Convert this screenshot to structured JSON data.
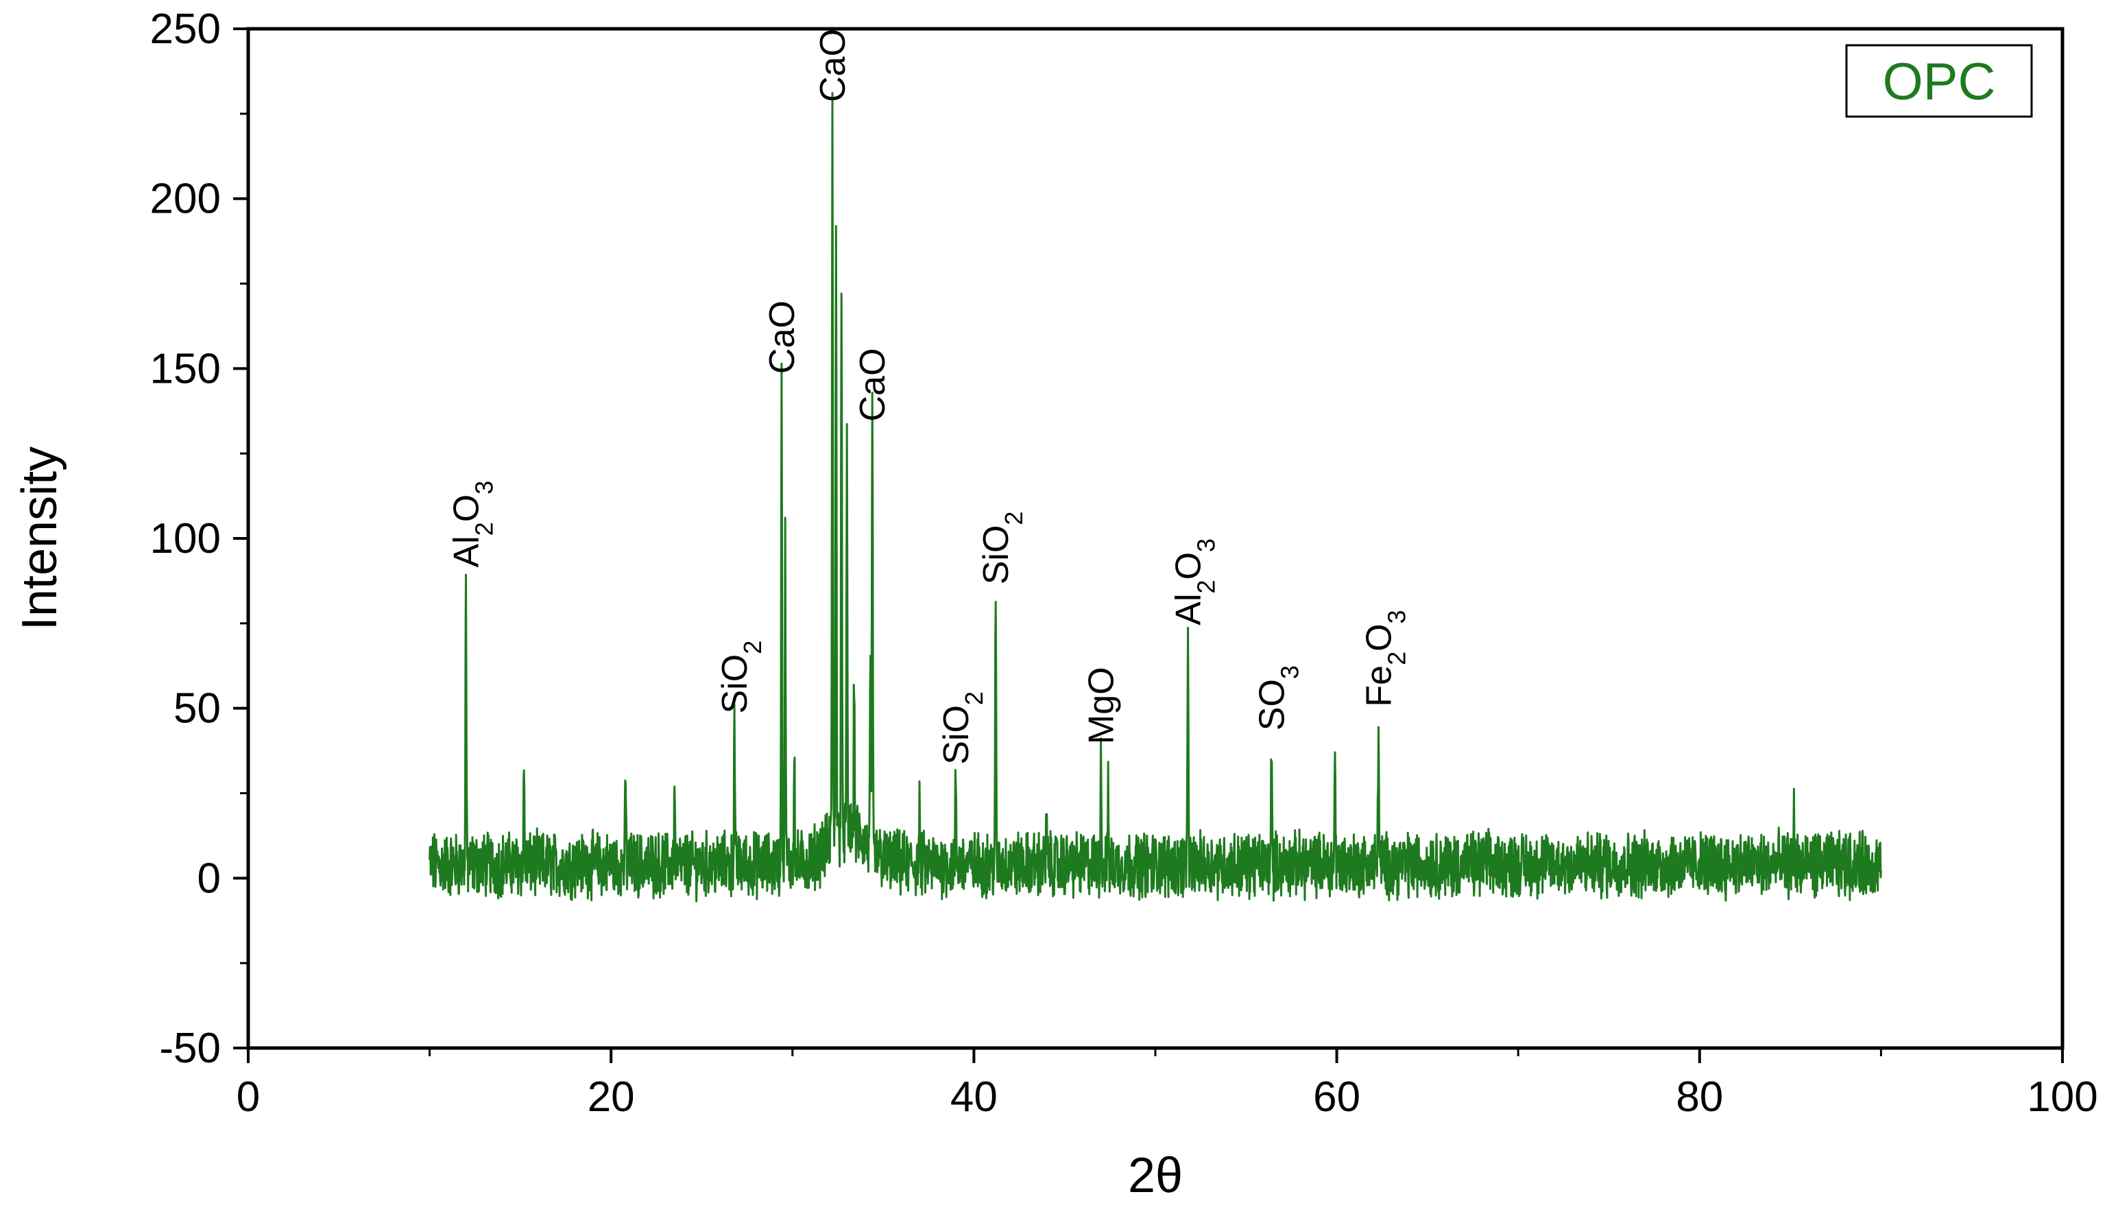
{
  "chart_data": {
    "type": "line",
    "title": "",
    "xlabel": "2θ",
    "ylabel": "Intensity",
    "xlim": [
      0,
      100
    ],
    "ylim": [
      -50,
      250
    ],
    "xticks": [
      0,
      20,
      40,
      60,
      80,
      100
    ],
    "yticks": [
      -50,
      0,
      50,
      100,
      150,
      200,
      250
    ],
    "x_tick_labels": [
      "0",
      "20",
      "40",
      "60",
      "80",
      "100"
    ],
    "y_tick_labels": [
      "-50",
      "0",
      "50",
      "100",
      "150",
      "200",
      "250"
    ],
    "grid": false,
    "legend_position": "top-right",
    "legend": [
      "OPC"
    ],
    "series": [
      {
        "name": "OPC",
        "color": "#1e7a1e",
        "x_range": [
          10,
          90
        ],
        "baseline": 4,
        "peaks": [
          {
            "x": 12.0,
            "y": 89
          },
          {
            "x": 15.2,
            "y": 32
          },
          {
            "x": 20.8,
            "y": 30
          },
          {
            "x": 23.5,
            "y": 26
          },
          {
            "x": 26.8,
            "y": 46
          },
          {
            "x": 29.4,
            "y": 146
          },
          {
            "x": 29.6,
            "y": 98
          },
          {
            "x": 30.1,
            "y": 40
          },
          {
            "x": 32.2,
            "y": 226
          },
          {
            "x": 32.4,
            "y": 188
          },
          {
            "x": 32.7,
            "y": 163
          },
          {
            "x": 33.0,
            "y": 115
          },
          {
            "x": 33.4,
            "y": 50
          },
          {
            "x": 34.3,
            "y": 62
          },
          {
            "x": 34.4,
            "y": 132
          },
          {
            "x": 37.0,
            "y": 20
          },
          {
            "x": 39.0,
            "y": 31
          },
          {
            "x": 41.2,
            "y": 84
          },
          {
            "x": 44.0,
            "y": 18
          },
          {
            "x": 47.0,
            "y": 37
          },
          {
            "x": 47.4,
            "y": 24
          },
          {
            "x": 51.8,
            "y": 72
          },
          {
            "x": 56.4,
            "y": 41
          },
          {
            "x": 59.9,
            "y": 38
          },
          {
            "x": 62.3,
            "y": 48
          },
          {
            "x": 85.2,
            "y": 21
          }
        ]
      }
    ],
    "peak_labels": [
      {
        "x": 12.0,
        "y": 89,
        "base": "Al",
        "sub1": "2",
        "mid": "O",
        "sub2": "3"
      },
      {
        "x": 26.8,
        "y": 46,
        "base": "Si",
        "sub1": "",
        "mid": "O",
        "sub2": "2"
      },
      {
        "x": 29.4,
        "y": 146,
        "base": "CaO",
        "sub1": "",
        "mid": "",
        "sub2": ""
      },
      {
        "x": 32.2,
        "y": 226,
        "base": "CaO",
        "sub1": "",
        "mid": "",
        "sub2": ""
      },
      {
        "x": 34.4,
        "y": 132,
        "base": "CaO",
        "sub1": "",
        "mid": "",
        "sub2": ""
      },
      {
        "x": 39.0,
        "y": 31,
        "base": "Si",
        "sub1": "",
        "mid": "O",
        "sub2": "2"
      },
      {
        "x": 41.2,
        "y": 84,
        "base": "Si",
        "sub1": "",
        "mid": "O",
        "sub2": "2"
      },
      {
        "x": 47.0,
        "y": 37,
        "base": "MgO",
        "sub1": "",
        "mid": "",
        "sub2": ""
      },
      {
        "x": 51.8,
        "y": 72,
        "base": "Al",
        "sub1": "2",
        "mid": "O",
        "sub2": "3"
      },
      {
        "x": 56.4,
        "y": 41,
        "base": "S",
        "sub1": "",
        "mid": "O",
        "sub2": "3"
      },
      {
        "x": 62.3,
        "y": 48,
        "base": "Fe",
        "sub1": "2",
        "mid": "O",
        "sub2": "3"
      }
    ]
  }
}
